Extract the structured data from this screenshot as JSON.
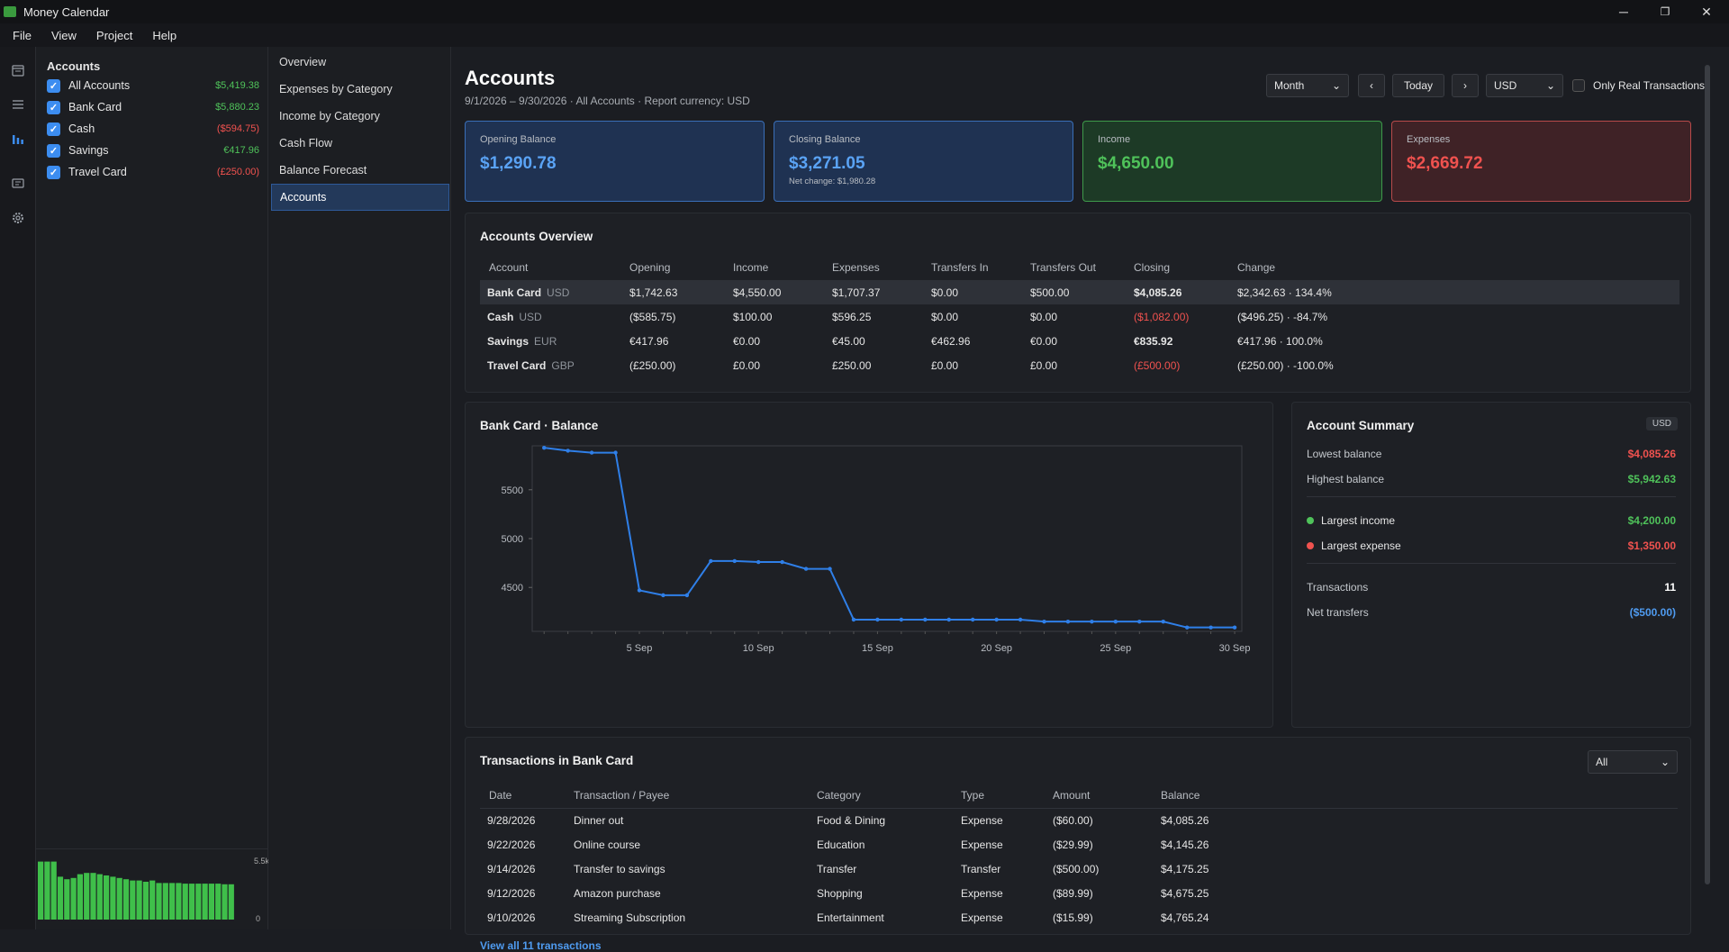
{
  "window": {
    "title": "Money Calendar",
    "minimize": "─",
    "maximize": "❐",
    "close": "✕"
  },
  "menu": [
    "File",
    "View",
    "Project",
    "Help"
  ],
  "rail_icons": [
    "calendar-icon",
    "list-icon",
    "chart-icon",
    "message-icon",
    "gear-icon"
  ],
  "sidebar": {
    "title": "Accounts",
    "items": [
      {
        "name": "All Accounts",
        "value": "$5,419.38",
        "sign": "pos"
      },
      {
        "name": "Bank Card",
        "value": "$5,880.23",
        "sign": "pos"
      },
      {
        "name": "Cash",
        "value": "($594.75)",
        "sign": "neg"
      },
      {
        "name": "Savings",
        "value": "€417.96",
        "sign": "pos"
      },
      {
        "name": "Travel Card",
        "value": "(£250.00)",
        "sign": "neg"
      }
    ],
    "mini_chart": {
      "max_label": "5.5k",
      "min_label": "0",
      "bars": [
        0.92,
        0.92,
        0.92,
        0.68,
        0.64,
        0.66,
        0.72,
        0.74,
        0.74,
        0.72,
        0.7,
        0.68,
        0.66,
        0.64,
        0.62,
        0.62,
        0.6,
        0.62,
        0.58,
        0.58,
        0.58,
        0.58,
        0.57,
        0.57,
        0.57,
        0.57,
        0.57,
        0.57,
        0.56,
        0.56
      ]
    }
  },
  "nav": {
    "items": [
      "Overview",
      "Expenses by Category",
      "Income by Category",
      "Cash Flow",
      "Balance Forecast",
      "Accounts"
    ],
    "active": 5
  },
  "header": {
    "title": "Accounts",
    "subtitle": "9/1/2026 – 9/30/2026  ·  All Accounts  ·  Report currency: USD",
    "period": "Month",
    "prev": "‹",
    "today": "Today",
    "next": "›",
    "currency": "USD",
    "only_real_label": "Only Real Transactions"
  },
  "cards": [
    {
      "label": "Opening Balance",
      "value": "$1,290.78",
      "note": "",
      "color": "#4f9bf0"
    },
    {
      "label": "Closing Balance",
      "value": "$3,271.05",
      "note": "Net change: $1,980.28",
      "color": "#4f9bf0"
    },
    {
      "label": "Income",
      "value": "$4,650.00",
      "note": "",
      "color": "#4fc25a"
    },
    {
      "label": "Expenses",
      "value": "$2,669.72",
      "note": "",
      "color": "#f0524f"
    }
  ],
  "overview": {
    "title": "Accounts Overview",
    "columns": [
      "Account",
      "Opening",
      "Income",
      "Expenses",
      "Transfers In",
      "Transfers Out",
      "Closing",
      "Change"
    ],
    "rows": [
      {
        "account": "Bank Card",
        "cur": "USD",
        "opening": "$1,742.63",
        "income": "$4,550.00",
        "expenses": "$1,707.37",
        "tin": "$0.00",
        "tout": "$500.00",
        "closing": "$4,085.26",
        "closing_neg": false,
        "change": "$2,342.63 · 134.4%"
      },
      {
        "account": "Cash",
        "cur": "USD",
        "opening": "($585.75)",
        "income": "$100.00",
        "expenses": "$596.25",
        "tin": "$0.00",
        "tout": "$0.00",
        "closing": "($1,082.00)",
        "closing_neg": true,
        "change": "($496.25) · -84.7%"
      },
      {
        "account": "Savings",
        "cur": "EUR",
        "opening": "€417.96",
        "income": "€0.00",
        "expenses": "€45.00",
        "tin": "€462.96",
        "tout": "€0.00",
        "closing": "€835.92",
        "closing_neg": false,
        "change": "€417.96 · 100.0%"
      },
      {
        "account": "Travel Card",
        "cur": "GBP",
        "opening": "(£250.00)",
        "income": "£0.00",
        "expenses": "£250.00",
        "tin": "£0.00",
        "tout": "£0.00",
        "closing": "(£500.00)",
        "closing_neg": true,
        "change": "(£250.00) · -100.0%"
      }
    ]
  },
  "chart_data": {
    "type": "line",
    "title": "Bank Card · Balance",
    "x": [
      1,
      2,
      3,
      4,
      5,
      6,
      7,
      8,
      9,
      10,
      11,
      12,
      13,
      14,
      15,
      16,
      17,
      18,
      19,
      20,
      21,
      22,
      23,
      24,
      25,
      26,
      27,
      28,
      29,
      30
    ],
    "series": [
      {
        "values": [
          5930,
          5900,
          5880,
          5880,
          4470,
          4420,
          4420,
          4770,
          4770,
          4760,
          4760,
          4690,
          4690,
          4170,
          4170,
          4170,
          4170,
          4170,
          4170,
          4170,
          4170,
          4150,
          4150,
          4150,
          4150,
          4150,
          4150,
          4090,
          4090,
          4090
        ]
      }
    ],
    "xticks": [
      {
        "x": 5,
        "label": "5 Sep"
      },
      {
        "x": 10,
        "label": "10 Sep"
      },
      {
        "x": 15,
        "label": "15 Sep"
      },
      {
        "x": 20,
        "label": "20 Sep"
      },
      {
        "x": 25,
        "label": "25 Sep"
      },
      {
        "x": 30,
        "label": "30 Sep"
      }
    ],
    "yticks": [
      4500,
      5000,
      5500
    ],
    "xlim": [
      0.5,
      30.3
    ],
    "ylim": [
      4050,
      5950
    ],
    "color": "#2f7fe8"
  },
  "summary": {
    "title": "Account Summary",
    "badge": "USD",
    "lowest_label": "Lowest balance",
    "lowest": "$4,085.26",
    "highest_label": "Highest balance",
    "highest": "$5,942.63",
    "largest_income_label": "Largest income",
    "largest_income": "$4,200.00",
    "largest_expense_label": "Largest expense",
    "largest_expense": "$1,350.00",
    "transactions_label": "Transactions",
    "transactions": "11",
    "net_transfers_label": "Net transfers",
    "net_transfers": "($500.00)"
  },
  "transactions": {
    "title": "Transactions in Bank Card",
    "filter": "All",
    "columns": [
      "Date",
      "Transaction / Payee",
      "Category",
      "Type",
      "Amount",
      "Balance"
    ],
    "rows": [
      {
        "date": "9/28/2026",
        "payee": "Dinner out",
        "category": "Food & Dining",
        "type": "Expense",
        "amount": "($60.00)",
        "balance": "$4,085.26"
      },
      {
        "date": "9/22/2026",
        "payee": "Online course",
        "category": "Education",
        "type": "Expense",
        "amount": "($29.99)",
        "balance": "$4,145.26"
      },
      {
        "date": "9/14/2026",
        "payee": "Transfer to savings",
        "category": "Transfer",
        "type": "Transfer",
        "amount": "($500.00)",
        "balance": "$4,175.25"
      },
      {
        "date": "9/12/2026",
        "payee": "Amazon purchase",
        "category": "Shopping",
        "type": "Expense",
        "amount": "($89.99)",
        "balance": "$4,675.25"
      },
      {
        "date": "9/10/2026",
        "payee": "Streaming Subscription",
        "category": "Entertainment",
        "type": "Expense",
        "amount": "($15.99)",
        "balance": "$4,765.24"
      }
    ],
    "view_all": "View all 11 transactions"
  }
}
